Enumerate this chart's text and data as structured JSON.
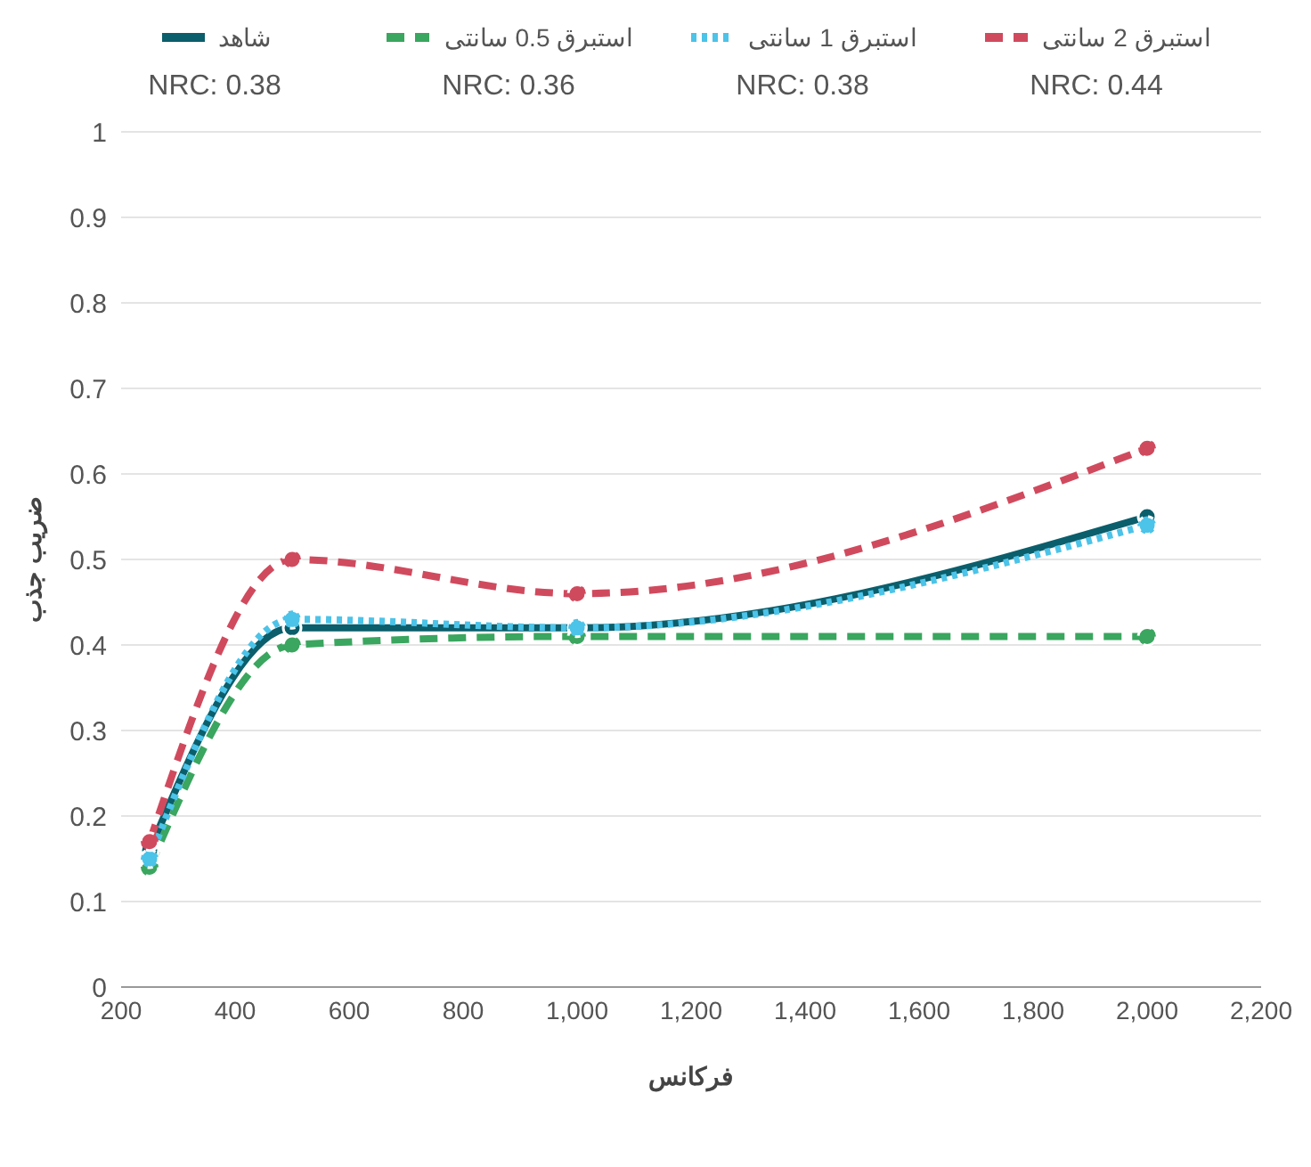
{
  "chart_data": {
    "type": "line",
    "xlabel": "فرکانس",
    "ylabel": "ضریب جذب",
    "x": [
      250,
      500,
      1000,
      2000
    ],
    "series": [
      {
        "name": "شاهد",
        "color": "#0b5e6b",
        "line_style": "solid",
        "values": [
          0.16,
          0.42,
          0.42,
          0.55
        ]
      },
      {
        "name": "استبرق 0.5 سانتی",
        "color": "#3aa65f",
        "line_style": "dashed",
        "values": [
          0.14,
          0.4,
          0.41,
          0.41
        ]
      },
      {
        "name": "استبرق 1 سانتی",
        "color": "#4cc3e8",
        "line_style": "dotted",
        "values": [
          0.15,
          0.43,
          0.42,
          0.54
        ]
      },
      {
        "name": "استبرق 2 سانتی",
        "color": "#d04a5e",
        "line_style": "dashed",
        "values": [
          0.17,
          0.5,
          0.46,
          0.63
        ]
      }
    ],
    "annotations": [
      "NRC: 0.38",
      "NRC: 0.36",
      "NRC: 0.38",
      "NRC: 0.44"
    ],
    "xlim": [
      200,
      2200
    ],
    "xticks": [
      200,
      400,
      600,
      800,
      {
        "value": 1000,
        "label": "1,000"
      },
      {
        "value": 1200,
        "label": "1,200"
      },
      {
        "value": 1400,
        "label": "1,400"
      },
      {
        "value": 1600,
        "label": "1,600"
      },
      {
        "value": 1800,
        "label": "1,800"
      },
      {
        "value": 2000,
        "label": "2,000"
      },
      {
        "value": 2200,
        "label": "2,200"
      }
    ],
    "ylim": [
      0,
      1
    ],
    "yticks": [
      0,
      0.1,
      0.2,
      0.3,
      0.4,
      0.5,
      0.6,
      0.7,
      0.8,
      0.9,
      1
    ],
    "grid": "y",
    "legend": "top",
    "marker": "circle"
  }
}
